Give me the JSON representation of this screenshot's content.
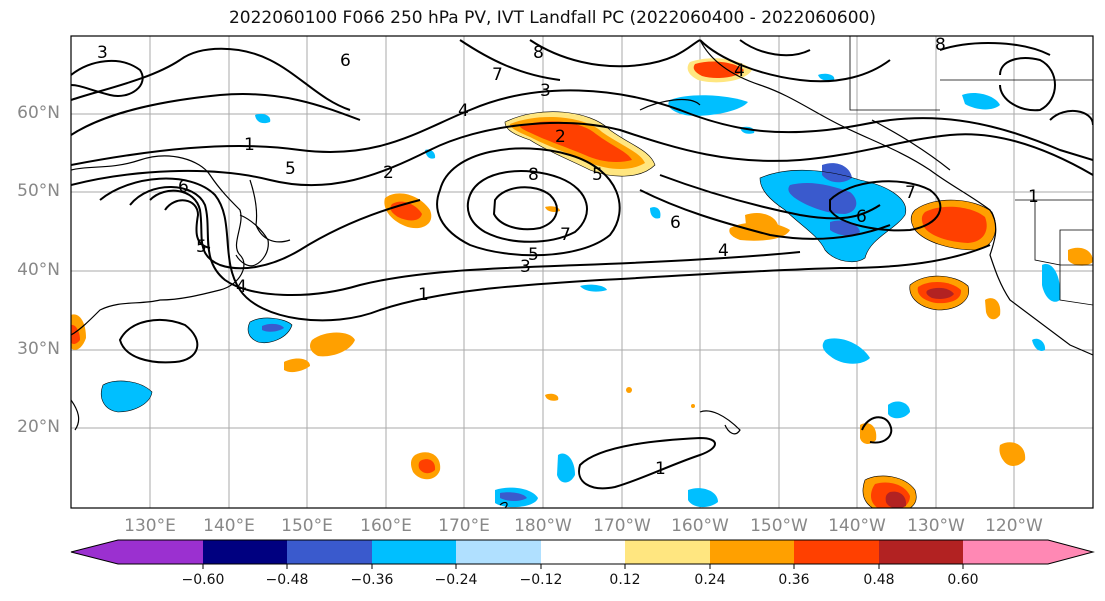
{
  "title": "2022060100 F066 250 hPa PV, IVT Landfall PC (2022060400 - 2022060600)",
  "lat_labels": [
    "60°N",
    "50°N",
    "40°N",
    "30°N",
    "20°N"
  ],
  "lon_labels": [
    "130°E",
    "140°E",
    "150°E",
    "160°E",
    "170°E",
    "180°W",
    "170°W",
    "160°W",
    "150°W",
    "140°W",
    "130°W",
    "120°W"
  ],
  "colorbar": {
    "ticks": [
      "−0.60",
      "−0.48",
      "−0.36",
      "−0.24",
      "−0.12",
      "0.12",
      "0.24",
      "0.36",
      "0.48",
      "0.60"
    ],
    "colors": [
      "#9b30d0",
      "#000080",
      "#3a5acd",
      "#00bfff",
      "#b0e0ff",
      "#ffffff",
      "#ffe680",
      "#ffa000",
      "#ff4000",
      "#b22222",
      "#ff88b4"
    ]
  },
  "contour_labels": [
    "3",
    "6",
    "8",
    "7",
    "3",
    "4",
    "1",
    "5",
    "2",
    "6",
    "5",
    "4",
    "1",
    "8",
    "7",
    "5",
    "3",
    "2",
    "5",
    "6",
    "4",
    "4",
    "1",
    "6",
    "7",
    "8",
    "1"
  ]
}
